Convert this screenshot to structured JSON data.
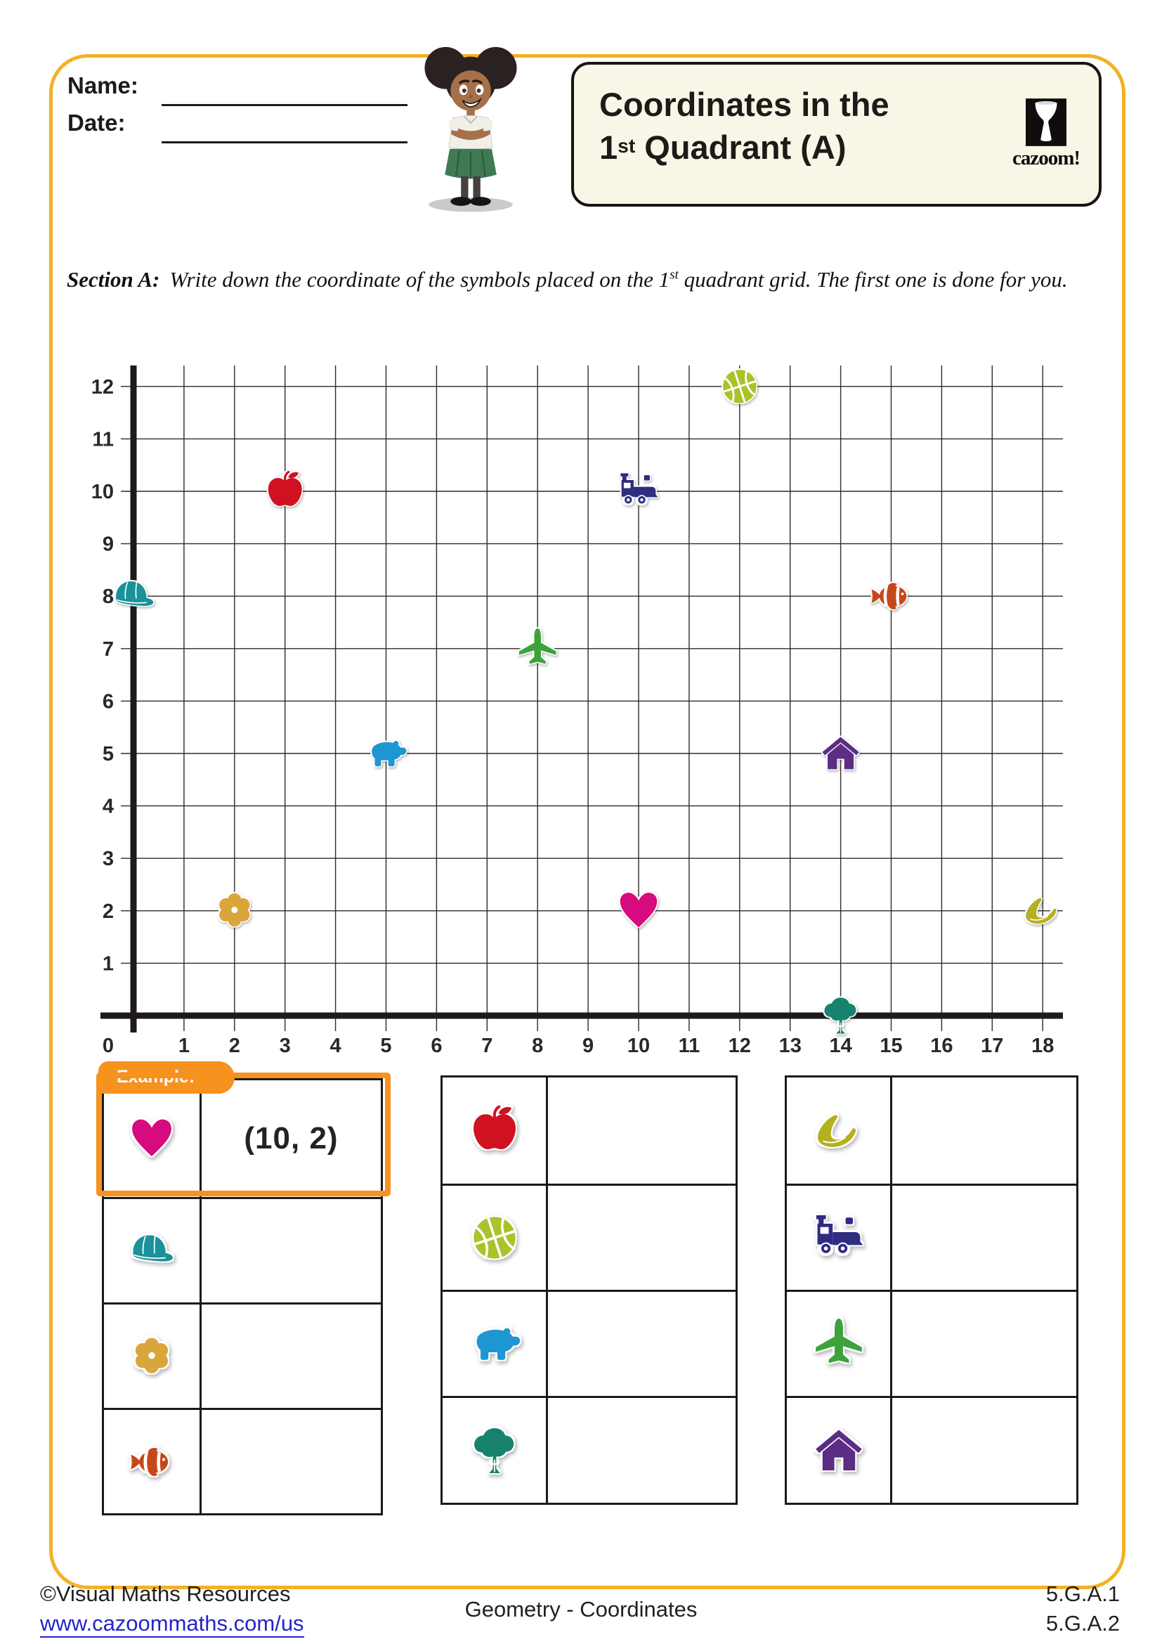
{
  "header": {
    "name_label": "Name:",
    "date_label": "Date:",
    "title_line1": "Coordinates in the",
    "title_line2_num": "1",
    "title_line2_sup": "st",
    "title_line2_rest": " Quadrant (A)",
    "logo_text": "cazoom!"
  },
  "section_a": {
    "label": "Section A:",
    "text_before_sup": "Write down the coordinate of the symbols placed on the 1",
    "sup": "st",
    "text_after_sup": " quadrant grid. The first one is done for you."
  },
  "chart_data": {
    "type": "scatter",
    "title": "",
    "xlabel": "",
    "ylabel": "",
    "xlim": [
      0,
      18.4
    ],
    "ylim": [
      0,
      12.4
    ],
    "grid": true,
    "x_tick_labels": [
      "0",
      "1",
      "2",
      "3",
      "4",
      "5",
      "6",
      "7",
      "8",
      "9",
      "10",
      "11",
      "12",
      "13",
      "14",
      "15",
      "16",
      "17",
      "18"
    ],
    "y_tick_labels": [
      "1",
      "2",
      "3",
      "4",
      "5",
      "6",
      "7",
      "8",
      "9",
      "10",
      "11",
      "12"
    ],
    "points": [
      {
        "symbol": "cap",
        "x": 0,
        "y": 8
      },
      {
        "symbol": "flower",
        "x": 2,
        "y": 2
      },
      {
        "symbol": "apple",
        "x": 3,
        "y": 10
      },
      {
        "symbol": "bear",
        "x": 5,
        "y": 5
      },
      {
        "symbol": "airplane",
        "x": 8,
        "y": 7
      },
      {
        "symbol": "heart",
        "x": 10,
        "y": 2
      },
      {
        "symbol": "train",
        "x": 10,
        "y": 10
      },
      {
        "symbol": "basketball",
        "x": 12,
        "y": 12
      },
      {
        "symbol": "tree",
        "x": 14,
        "y": 0
      },
      {
        "symbol": "house",
        "x": 14,
        "y": 5
      },
      {
        "symbol": "clownfish",
        "x": 15,
        "y": 8
      },
      {
        "symbol": "bananas",
        "x": 18,
        "y": 2
      }
    ]
  },
  "symbol_colors": {
    "heart": "#d60b7d",
    "cap": "#1b929b",
    "flower": "#daa63c",
    "clownfish": "#c64818",
    "apple": "#d01220",
    "basketball": "#a9c32a",
    "bear": "#1e96d2",
    "tree": "#17836f",
    "bananas": "#b3b120",
    "train": "#2e2d80",
    "airplane": "#3ea23c",
    "house": "#5c2d84"
  },
  "answer_tables": {
    "example_label": "Example:",
    "tables": [
      {
        "rows": [
          {
            "symbol": "heart",
            "answer": "(10, 2)",
            "example": true
          },
          {
            "symbol": "cap",
            "answer": ""
          },
          {
            "symbol": "flower",
            "answer": ""
          },
          {
            "symbol": "clownfish",
            "answer": ""
          }
        ]
      },
      {
        "rows": [
          {
            "symbol": "apple",
            "answer": ""
          },
          {
            "symbol": "basketball",
            "answer": ""
          },
          {
            "symbol": "bear",
            "answer": ""
          },
          {
            "symbol": "tree",
            "answer": ""
          }
        ]
      },
      {
        "rows": [
          {
            "symbol": "bananas",
            "answer": ""
          },
          {
            "symbol": "train",
            "answer": ""
          },
          {
            "symbol": "airplane",
            "answer": ""
          },
          {
            "symbol": "house",
            "answer": ""
          }
        ]
      }
    ]
  },
  "footer": {
    "copyright": "©Visual Maths Resources",
    "url": "www.cazoommaths.com/us",
    "center_text": "Geometry - Coordinates",
    "standards": [
      "5.G.A.1",
      "5.G.A.2"
    ]
  }
}
